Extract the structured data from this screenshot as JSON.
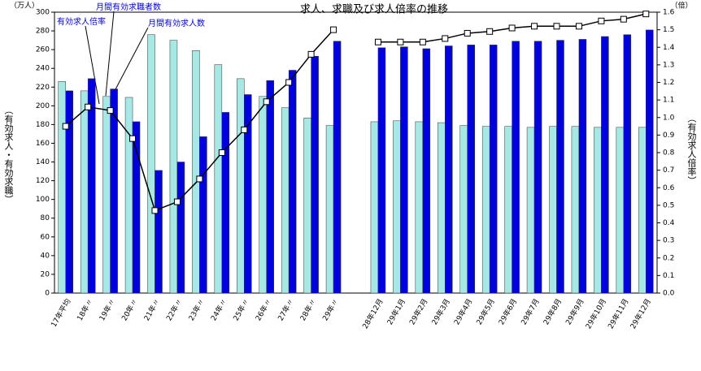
{
  "chart_data": {
    "type": "bar-line",
    "title": "求人、求職及び求人倍率の推移",
    "y_unit": "（万人）",
    "y2_unit": "（倍）",
    "ylabel": "（有効求人・有効求職）",
    "y2label": "（有効求人倍率）",
    "categories": [
      "17年平均",
      "18年〃",
      "19年〃",
      "20年〃",
      "21年〃",
      "22年〃",
      "23年〃",
      "24年〃",
      "25年〃",
      "26年〃",
      "27年〃",
      "28年〃",
      "29年〃",
      null,
      "28年12月",
      "29年1月",
      "29年2月",
      "29年3月",
      "29年4月",
      "29年5月",
      "29年6月",
      "29年7月",
      "29年8月",
      "29年9月",
      "29年10月",
      "29年11月",
      "29年12月"
    ],
    "series": [
      {
        "name": "月間有効求職者数",
        "type": "bar",
        "color": "#a6e8e4",
        "values": [
          226,
          216,
          210,
          209,
          276,
          270,
          259,
          244,
          229,
          210,
          198,
          187,
          179,
          null,
          183,
          184,
          183,
          182,
          179,
          178,
          178,
          177,
          178,
          178,
          177,
          177,
          177
        ]
      },
      {
        "name": "月間有効求人数",
        "type": "bar",
        "color": "#0000e0",
        "values": [
          216,
          229,
          218,
          183,
          131,
          140,
          167,
          193,
          212,
          227,
          238,
          253,
          269,
          null,
          262,
          263,
          261,
          264,
          265,
          265,
          269,
          269,
          270,
          271,
          274,
          276,
          281
        ]
      },
      {
        "name": "有効求人倍率",
        "type": "line",
        "axis": "y2",
        "color": "#000000",
        "values": [
          0.95,
          1.06,
          1.04,
          0.88,
          0.47,
          0.52,
          0.65,
          0.8,
          0.93,
          1.09,
          1.2,
          1.36,
          1.5,
          null,
          1.43,
          1.43,
          1.43,
          1.45,
          1.48,
          1.49,
          1.51,
          1.52,
          1.52,
          1.52,
          1.55,
          1.56,
          1.59
        ]
      }
    ],
    "ylim": [
      0,
      300
    ],
    "yticks": [
      0,
      20,
      40,
      60,
      80,
      100,
      120,
      140,
      160,
      180,
      200,
      220,
      240,
      260,
      280,
      300
    ],
    "y2lim": [
      0,
      1.6
    ],
    "y2ticks": [
      {
        "value": 0,
        "label": "0.0"
      },
      0.1,
      0.2,
      0.3,
      0.4,
      0.5,
      0.6,
      0.7,
      0.8,
      0.9,
      {
        "value": 1,
        "label": "1.0"
      },
      1.1,
      1.2,
      1.3,
      1.4,
      1.5,
      1.6
    ]
  }
}
